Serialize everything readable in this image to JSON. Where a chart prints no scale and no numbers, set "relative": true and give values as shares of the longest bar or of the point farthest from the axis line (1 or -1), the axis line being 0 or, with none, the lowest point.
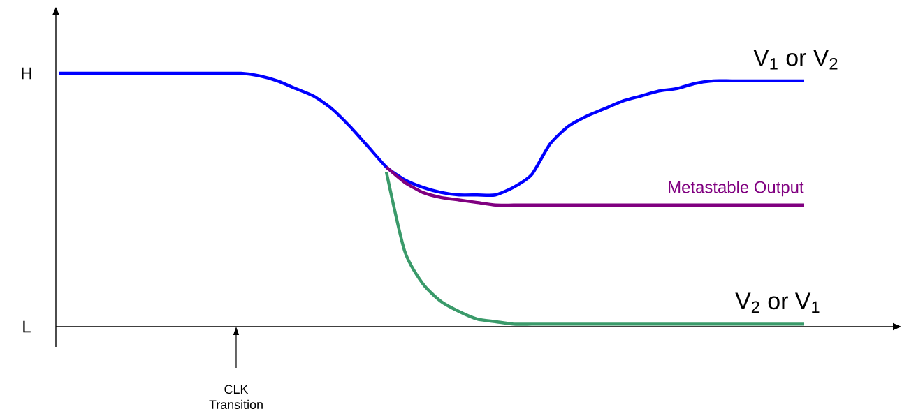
{
  "chart_data": {
    "type": "line",
    "relative": true,
    "categories": [
      null,
      null,
      null,
      null,
      null,
      null,
      null,
      null,
      null,
      null,
      null,
      null,
      null,
      null,
      null,
      null,
      null,
      null,
      null,
      null,
      null,
      null,
      null,
      null,
      null,
      null,
      null,
      null,
      null,
      null,
      null,
      null,
      null,
      null,
      null,
      null,
      null,
      null,
      null,
      null,
      null,
      null
    ],
    "series": [
      {
        "name": "V$_{1}$ or V$_{2}$",
        "color": "#0000ff",
        "values": [
          1,
          1,
          1,
          1,
          1,
          1,
          1,
          1,
          1,
          1,
          1.0,
          0.99,
          0.97,
          0.94,
          0.91,
          0.86,
          0.79,
          0.71,
          0.63,
          0.58,
          0.55,
          0.53,
          0.52,
          0.52,
          0.52,
          0.55,
          0.6,
          0.72,
          0.79,
          0.83,
          0.86,
          0.89,
          0.91,
          0.93,
          0.94,
          0.96,
          0.97,
          0.97,
          0.97,
          0.97,
          0.97,
          0.97
        ]
      },
      {
        "name": "Metastable Output",
        "color": "#800080",
        "values": [
          null,
          null,
          null,
          null,
          null,
          null,
          null,
          null,
          null,
          null,
          null,
          null,
          null,
          null,
          null,
          null,
          null,
          null,
          0.63,
          0.57,
          0.53,
          0.51,
          0.5,
          0.49,
          0.48,
          0.48,
          0.48,
          0.48,
          0.48,
          0.48,
          0.48,
          0.48,
          0.48,
          0.48,
          0.48,
          0.48,
          0.48,
          0.48,
          0.48,
          0.48,
          0.48,
          0.48
        ]
      },
      {
        "name": "V$_{2}$ or V$_{1}$",
        "color": "#3a9a6a",
        "values": [
          null,
          null,
          null,
          null,
          null,
          null,
          null,
          null,
          null,
          null,
          null,
          null,
          null,
          null,
          null,
          null,
          null,
          null,
          0.61,
          0.3,
          0.17,
          0.1,
          0.06,
          0.03,
          0.02,
          0.01,
          0.01,
          0.01,
          0.01,
          0.01,
          0.01,
          0.01,
          0.01,
          0.01,
          0.01,
          0.01,
          0.01,
          0.01,
          0.01,
          0.01,
          0.01,
          0.01
        ]
      }
    ],
    "annotations": [
      "CLK Transition",
      "H",
      "L"
    ]
  }
}
